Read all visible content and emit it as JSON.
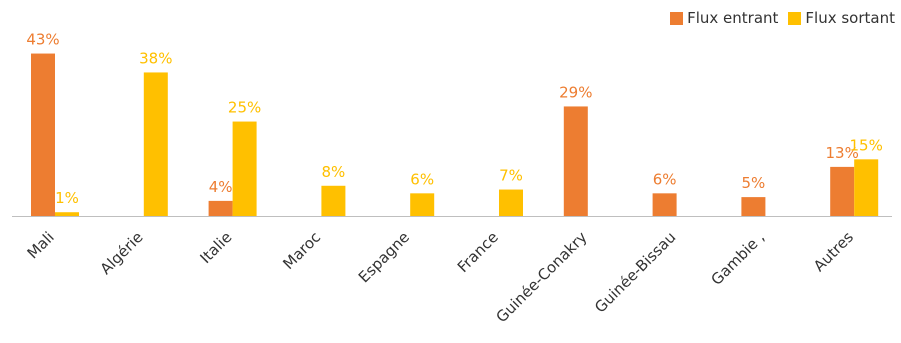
{
  "chart_data": {
    "type": "bar",
    "categories": [
      "Mali",
      "Algérie",
      "Italie",
      "Maroc",
      "Espagne",
      "France",
      "Guinée-Conakry",
      "Guinée-Bissau",
      "Gambie ,",
      "Autres"
    ],
    "series": [
      {
        "name": "Flux entrant",
        "color": "#ED7D31",
        "values": [
          43,
          null,
          4,
          null,
          null,
          null,
          29,
          6,
          5,
          13
        ],
        "labels": [
          "43%",
          "",
          "4%",
          "",
          "",
          "",
          "29%",
          "6%",
          "5%",
          "13%"
        ]
      },
      {
        "name": "Flux sortant",
        "color": "#FFC000",
        "values": [
          1,
          38,
          25,
          8,
          6,
          7,
          null,
          null,
          null,
          15
        ],
        "labels": [
          "1%",
          "38%",
          "25%",
          "8%",
          "6%",
          "7%",
          "",
          "",
          "",
          "15%"
        ]
      }
    ],
    "ylim": [
      0,
      45
    ],
    "grid": false,
    "legend_position": "top-right"
  }
}
